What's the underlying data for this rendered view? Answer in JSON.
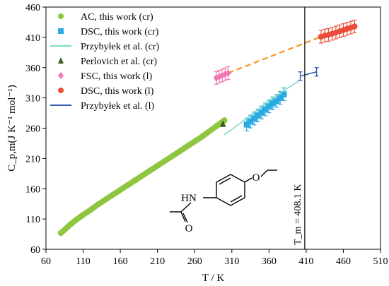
{
  "chart_data": {
    "type": "scatter",
    "xlabel": "T / K",
    "ylabel": "C_p,m(J K⁻¹ mol⁻¹)",
    "xlim": [
      60,
      510
    ],
    "ylim": [
      60,
      460
    ],
    "xticks": [
      "60",
      "110",
      "160",
      "210",
      "260",
      "310",
      "360",
      "410",
      "460",
      "510"
    ],
    "yticks": [
      "60",
      "110",
      "160",
      "210",
      "260",
      "310",
      "360",
      "410",
      "460"
    ],
    "grid": false,
    "legend_position": "top-left",
    "annotation": "T_m = 408.1 K",
    "melting_temperature": 408.1,
    "series": [
      {
        "name": "AC, this work (cr)",
        "marker": "circle-dense",
        "color": "#8dc63f",
        "x": [
          80,
          85,
          90,
          95,
          100,
          110,
          120,
          130,
          140,
          150,
          160,
          170,
          180,
          190,
          200,
          210,
          220,
          230,
          240,
          250,
          260,
          270,
          280,
          290,
          300
        ],
        "y": [
          87,
          92,
          98,
          103,
          108,
          117,
          125,
          134,
          142,
          150,
          158,
          166,
          174,
          182,
          190,
          198,
          206,
          214,
          222,
          230,
          238,
          246,
          255,
          264,
          273
        ]
      },
      {
        "name": "DSC, this work (cr)",
        "marker": "square",
        "color": "#29abe2",
        "error_bars": true,
        "x": [
          330,
          335,
          340,
          345,
          350,
          355,
          360,
          365,
          370,
          375,
          380
        ],
        "y": [
          266,
          271,
          276,
          281,
          286,
          291,
          296,
          301,
          305,
          310,
          316
        ]
      },
      {
        "name": "Przybyłek et al. (cr)",
        "marker": "line",
        "color": "#7fdcc6",
        "x": [
          300,
          320,
          340,
          360,
          380,
          400
        ],
        "y": [
          249,
          267,
          286,
          306,
          322,
          338
        ]
      },
      {
        "name": "Perlovich et al. (cr)",
        "marker": "triangle",
        "color": "#3d5a1e",
        "x": [
          298
        ],
        "y": [
          267
        ]
      },
      {
        "name": "FSC, this work (l)",
        "marker": "diamond",
        "color": "#f078b4",
        "error_bars": true,
        "x": [
          289,
          293,
          297,
          301,
          305
        ],
        "y": [
          343,
          345,
          347,
          349,
          351
        ]
      },
      {
        "name": "DSC, this work (l)",
        "marker": "circle",
        "color": "#ed4c3a",
        "error_bars": true,
        "x": [
          430,
          435,
          440,
          445,
          450,
          455,
          460,
          465,
          470,
          475
        ],
        "y": [
          411,
          413,
          414,
          416,
          418,
          420,
          422,
          424,
          426,
          428
        ]
      },
      {
        "name": "Przybyłek et al. (l)",
        "marker": "line",
        "color": "#2e5aac",
        "error_bars": true,
        "x": [
          402,
          424
        ],
        "y": [
          346,
          353
        ]
      }
    ],
    "fit_line": {
      "style": "dashed",
      "color": "#f7941d",
      "x": [
        305,
        430
      ],
      "y": [
        351,
        411
      ]
    }
  }
}
